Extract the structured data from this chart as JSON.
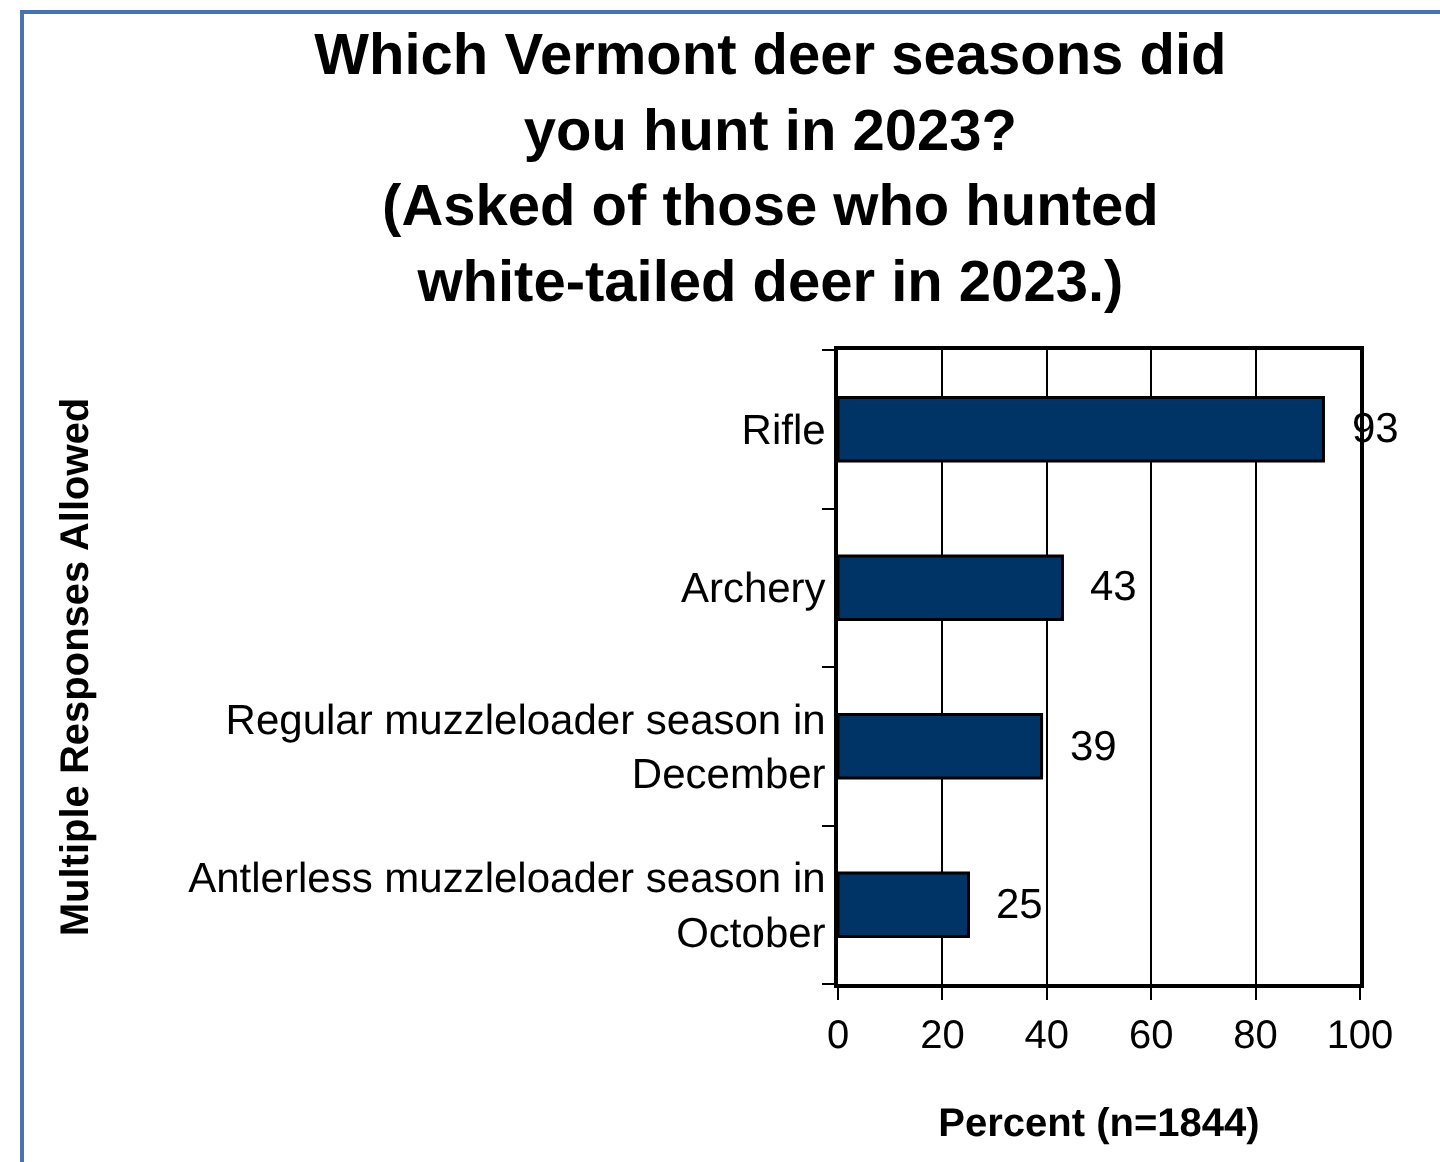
{
  "chart_data": {
    "type": "bar",
    "orientation": "horizontal",
    "title": "Which Vermont deer seasons did you hunt in 2023?",
    "subtitle": "(Asked of those who hunted white-tailed deer in 2023.)",
    "xlabel": "Percent (n=1844)",
    "ylabel": "Multiple Responses Allowed",
    "categories": [
      "Rifle",
      "Archery",
      "Regular muzzleloader season in December",
      "Antlerless muzzleloader season in October"
    ],
    "values": [
      93,
      43,
      39,
      25
    ],
    "color": "#003366",
    "xlim": [
      0,
      100
    ],
    "xticks": [
      0,
      20,
      40,
      60,
      80,
      100
    ],
    "grid": "x",
    "data_labels": true
  }
}
